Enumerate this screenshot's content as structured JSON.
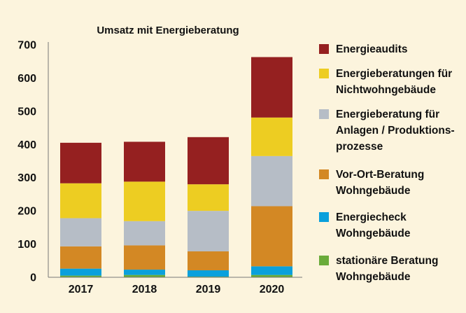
{
  "chart_data": {
    "type": "bar",
    "stacked": true,
    "title": "Umsatz mit Energieberatung",
    "xlabel": "",
    "ylabel": "",
    "ylim": [
      0,
      700
    ],
    "yticks": [
      0,
      100,
      200,
      300,
      400,
      500,
      600,
      700
    ],
    "grid": false,
    "legend_position": "right",
    "categories": [
      "2017",
      "2018",
      "2019",
      "2020"
    ],
    "series": [
      {
        "name": "stationäre Beratung Wohngebäude",
        "lines": [
          "stationäre Beratung",
          "Wohngebäude"
        ],
        "color": "#6aab3a",
        "values": [
          4,
          6,
          1,
          6
        ]
      },
      {
        "name": "Energiecheck Wohngebäude",
        "lines": [
          "Energiecheck",
          "Wohngebäude"
        ],
        "color": "#0aa0dc",
        "values": [
          21,
          16,
          19,
          26
        ]
      },
      {
        "name": "Vor-Ort-Beratung Wohngebäude",
        "lines": [
          "Vor-Ort-Beratung",
          "Wohngebäude"
        ],
        "color": "#d38824",
        "values": [
          67,
          73,
          57,
          181
        ]
      },
      {
        "name": "Energieberatung für Anlagen / Produktionsprozesse",
        "lines": [
          "Energieberatung für",
          "Anlagen / Produktions-",
          "prozesse"
        ],
        "color": "#b6bdc6",
        "values": [
          85,
          73,
          122,
          151
        ]
      },
      {
        "name": "Energieberatungen für Nichtwohngebäude",
        "lines": [
          "Energieberatungen für",
          "Nichtwohngebäude"
        ],
        "color": "#edcd22",
        "values": [
          105,
          119,
          80,
          116
        ]
      },
      {
        "name": "Energieaudits",
        "lines": [
          "Energieaudits"
        ],
        "color": "#952020",
        "values": [
          122,
          120,
          142,
          182
        ]
      }
    ]
  }
}
